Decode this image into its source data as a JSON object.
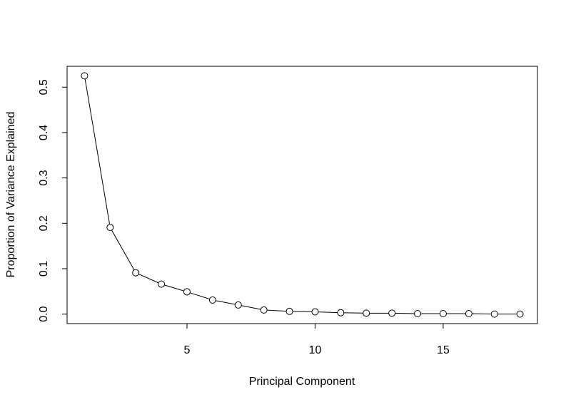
{
  "chart_data": {
    "type": "line",
    "x_label": "Principal Component",
    "y_label": "Proportion of Variance Explained",
    "x": [
      1,
      2,
      3,
      4,
      5,
      6,
      7,
      8,
      9,
      10,
      11,
      12,
      13,
      14,
      15,
      16,
      17,
      18
    ],
    "series": [
      {
        "color": "#000000",
        "values": [
          0.525,
          0.191,
          0.091,
          0.066,
          0.049,
          0.031,
          0.02,
          0.009,
          0.006,
          0.005,
          0.003,
          0.002,
          0.002,
          0.001,
          0.001,
          0.001,
          0.0,
          0.0
        ]
      }
    ],
    "xlim": [
      0.32,
      18.68
    ],
    "ylim": [
      -0.021,
      0.546
    ],
    "xticks": [
      5,
      10,
      15
    ],
    "yticks": [
      {
        "value": 0,
        "label": "0.0"
      },
      0.1,
      0.2,
      0.3,
      0.4,
      0.5
    ]
  }
}
